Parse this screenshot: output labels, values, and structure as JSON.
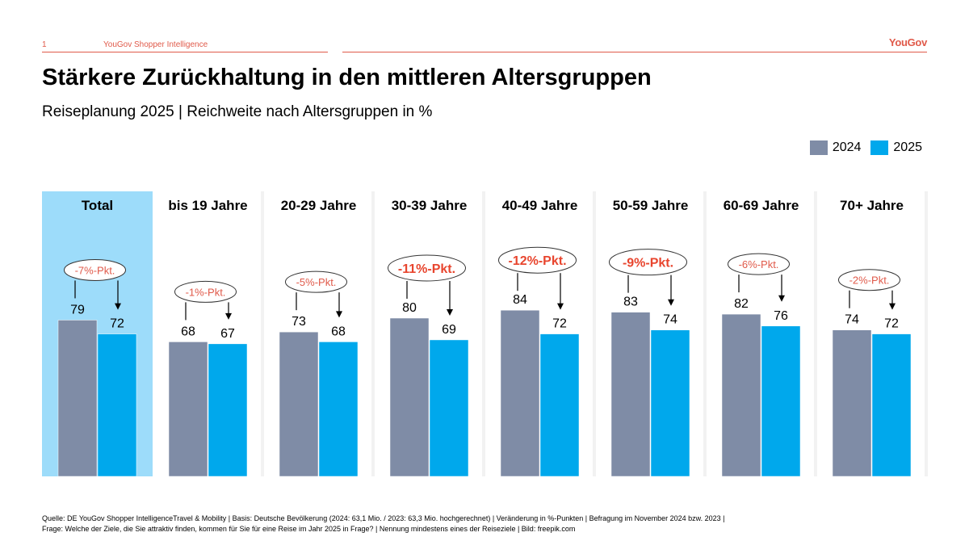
{
  "header": {
    "page_number": "1",
    "source_label": "YouGov Shopper Intelligence",
    "logo_text": "YouGov"
  },
  "title": "Stärkere Zurückhaltung in den mittleren Altersgruppen",
  "subtitle": "Reiseplanung 2025 | Reichweite nach Altersgruppen in %",
  "legend": [
    {
      "label": "2024",
      "color": "#7f8ca6"
    },
    {
      "label": "2025",
      "color": "#00a8ec"
    }
  ],
  "colors": {
    "bar_2024": "#7f8ca6",
    "bar_2025": "#00a8ec",
    "highlight_background": "#9ddcfa",
    "delta_strong": "#e8452e",
    "delta_normal": "#e05a4a"
  },
  "chart_data": {
    "type": "bar",
    "categories": [
      "Total",
      "bis 19 Jahre",
      "20-29 Jahre",
      "30-39 Jahre",
      "40-49 Jahre",
      "50-59 Jahre",
      "60-69 Jahre",
      "70+ Jahre"
    ],
    "series": [
      {
        "name": "2024",
        "values": [
          79,
          68,
          73,
          80,
          84,
          83,
          82,
          74
        ]
      },
      {
        "name": "2025",
        "values": [
          72,
          67,
          68,
          69,
          72,
          74,
          76,
          72
        ]
      }
    ],
    "deltas": [
      "-7%-Pkt.",
      "-1%-Pkt.",
      "-5%-Pkt.",
      "-11%-Pkt.",
      "-12%-Pkt.",
      "-9%-Pkt.",
      "-6%-Pkt.",
      "-2%-Pkt."
    ],
    "delta_emphasis": [
      false,
      false,
      false,
      true,
      true,
      true,
      false,
      false
    ],
    "highlighted_category": "Total",
    "title": "",
    "xlabel": "",
    "ylabel": "",
    "ylim": [
      0,
      100
    ]
  },
  "footer": {
    "line1": "Quelle: DE YouGov Shopper IntelligenceTravel & Mobility | Basis: Deutsche Bevölkerung (2024: 63,1 Mio. / 2023: 63,3 Mio. hochgerechnet) | Veränderung in %-Punkten | Befragung im November 2024 bzw. 2023 |",
    "line2": "Frage: Welche der Ziele, die Sie attraktiv finden, kommen für Sie für eine Reise im Jahr 2025 in Frage? | Nennung mindestens eines der Reiseziele | Bild: freepik.com"
  }
}
